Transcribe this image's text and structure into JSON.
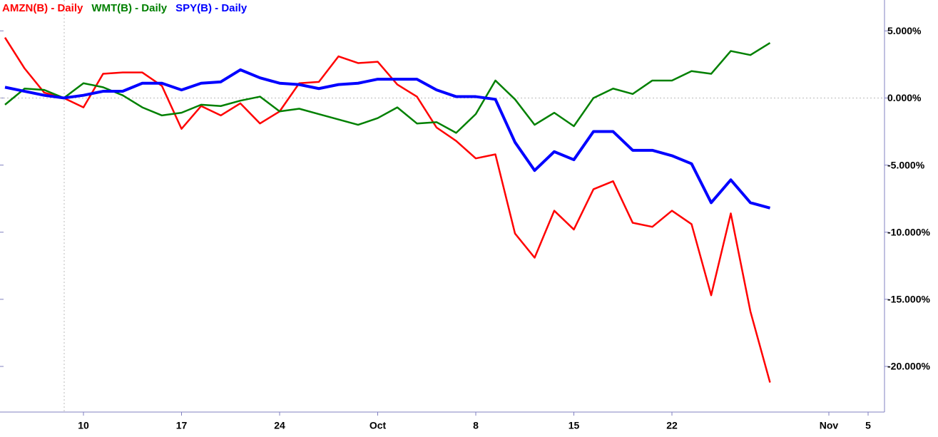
{
  "chart_data": {
    "type": "line",
    "categories": [
      null,
      null,
      null,
      null,
      "10",
      null,
      null,
      null,
      null,
      "17",
      null,
      null,
      null,
      null,
      "24",
      null,
      null,
      null,
      null,
      "Oct",
      null,
      null,
      null,
      null,
      "8",
      null,
      null,
      null,
      null,
      "15",
      null,
      null,
      null,
      null,
      "22",
      null,
      null,
      null,
      null,
      null,
      null,
      null,
      "Nov",
      null,
      "5",
      null
    ],
    "series": [
      {
        "name": "AMZN(B) - Daily",
        "color": "#ff0000",
        "values": [
          4.5,
          2.2,
          0.4,
          0,
          -0.7,
          1.8,
          1.9,
          1.9,
          0.9,
          -2.3,
          -0.6,
          -1.3,
          -0.4,
          -1.9,
          -1.0,
          1.1,
          1.2,
          3.1,
          2.6,
          2.7,
          1.0,
          0.1,
          -2.2,
          -3.2,
          -4.5,
          -4.2,
          -10.1,
          -11.9,
          -8.4,
          -9.8,
          -6.8,
          -6.2,
          -9.3,
          -9.6,
          -8.4,
          -9.4,
          -14.7,
          -8.6,
          -15.9,
          -21.2,
          null,
          null,
          null,
          null,
          null,
          null
        ]
      },
      {
        "name": "WMT(B) - Daily",
        "color": "#008000",
        "values": [
          -0.5,
          0.7,
          0.6,
          0,
          1.1,
          0.8,
          0.2,
          -0.7,
          -1.3,
          -1.1,
          -0.5,
          -0.6,
          -0.2,
          0.1,
          -1.0,
          -0.8,
          -1.2,
          -1.6,
          -2.0,
          -1.5,
          -0.7,
          -1.9,
          -1.8,
          -2.6,
          -1.2,
          1.3,
          -0.1,
          -2.0,
          -1.1,
          -2.1,
          0.0,
          0.7,
          0.3,
          1.3,
          1.3,
          2.0,
          1.8,
          3.5,
          3.2,
          4.1,
          null,
          null,
          null,
          null,
          null,
          null
        ]
      },
      {
        "name": "SPY(B) - Daily",
        "color": "#0000ff",
        "values": [
          0.8,
          0.5,
          0.2,
          0,
          0.2,
          0.5,
          0.5,
          1.1,
          1.1,
          0.6,
          1.1,
          1.2,
          2.1,
          1.5,
          1.1,
          1.0,
          0.7,
          1.0,
          1.1,
          1.4,
          1.4,
          1.4,
          0.6,
          0.1,
          0.1,
          -0.1,
          -3.3,
          -5.4,
          -4.0,
          -4.6,
          -2.5,
          -2.5,
          -3.9,
          -3.9,
          -4.3,
          -4.9,
          -7.8,
          -6.1,
          -7.8,
          -8.2,
          null,
          null,
          null,
          null,
          null,
          null
        ]
      }
    ],
    "ylim": [
      -23.4,
      7.3
    ],
    "yticks": [
      {
        "value": 5,
        "label": "5.000%"
      },
      {
        "value": 0,
        "label": "0.000%"
      },
      {
        "value": -5,
        "label": "-5.000%"
      },
      {
        "value": -10,
        "label": "-10.000%"
      },
      {
        "value": -15,
        "label": "-15.000%"
      },
      {
        "value": -20,
        "label": "-20.000%"
      }
    ]
  }
}
